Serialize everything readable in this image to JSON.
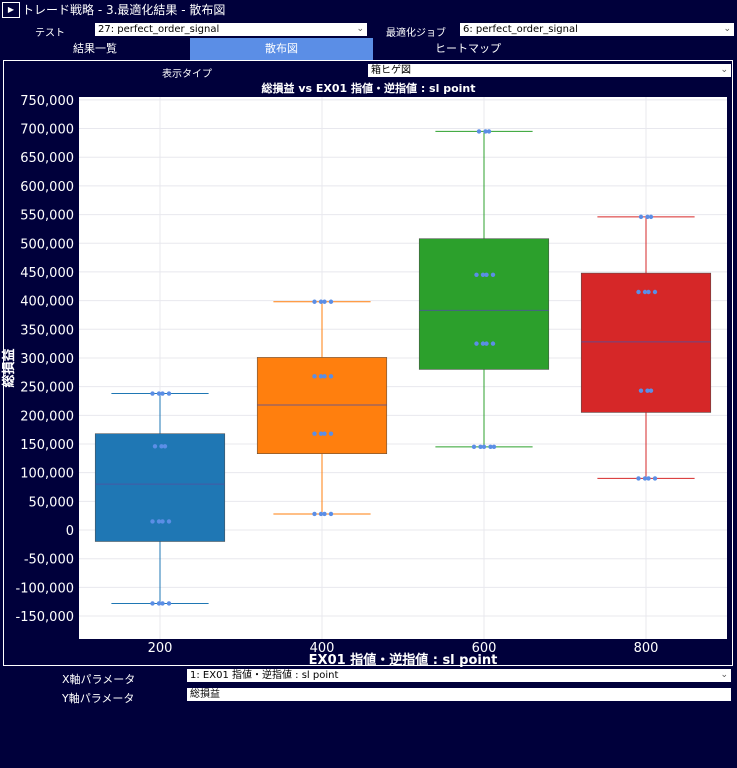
{
  "app": {
    "title": "トレード戦略 - 3.最適化結果 - 散布図",
    "play_icon": "play-icon"
  },
  "controls": {
    "test_label": "テスト",
    "test_value": "27: perfect_order_signal",
    "job_label": "最適化ジョブ",
    "job_value": "6: perfect_order_signal",
    "display_type_label": "表示タイプ",
    "display_type_value": "箱ヒゲ図",
    "x_param_label": "X軸パラメータ",
    "x_param_value": "1: EX01 指値・逆指値 : sl point",
    "y_param_label": "Y軸パラメータ",
    "y_param_value": "総損益"
  },
  "tabs": [
    {
      "label": "結果一覧",
      "active": false
    },
    {
      "label": "散布図",
      "active": true
    },
    {
      "label": "ヒートマップ",
      "active": false
    }
  ],
  "chart_data": {
    "type": "box",
    "title": "総損益 vs EX01 指値・逆指値 : sl point",
    "xlabel": "EX01 指値・逆指値 : sl point",
    "ylabel": "総損益",
    "ylim": [
      -190000,
      755000
    ],
    "yticks": [
      750000,
      700000,
      650000,
      600000,
      550000,
      500000,
      450000,
      400000,
      350000,
      300000,
      250000,
      200000,
      150000,
      100000,
      50000,
      0,
      -50000,
      -100000,
      -150000
    ],
    "categories": [
      "200",
      "400",
      "600",
      "800"
    ],
    "boxes": [
      {
        "x": "200",
        "color": "#1f77b4",
        "min": -128000,
        "q1": -20000,
        "median": 80000,
        "q3": 168000,
        "max": 238000,
        "points": [
          238000,
          238000,
          238000,
          238000,
          146000,
          146000,
          146000,
          15000,
          15000,
          15000,
          15000,
          -128000,
          -128000,
          -128000,
          -128000
        ]
      },
      {
        "x": "400",
        "color": "#ff7f0e",
        "min": 28000,
        "q1": 133000,
        "median": 218000,
        "q3": 301000,
        "max": 398000,
        "points": [
          398000,
          398000,
          398000,
          398000,
          268000,
          268000,
          268000,
          268000,
          168000,
          168000,
          168000,
          168000,
          28000,
          28000,
          28000,
          28000
        ]
      },
      {
        "x": "600",
        "color": "#2ca02c",
        "min": 145000,
        "q1": 280000,
        "median": 383000,
        "q3": 508000,
        "max": 695000,
        "points": [
          695000,
          695000,
          695000,
          445000,
          445000,
          445000,
          445000,
          325000,
          325000,
          325000,
          325000,
          145000,
          145000,
          145000,
          145000,
          145000
        ]
      },
      {
        "x": "800",
        "color": "#d62728",
        "min": 90000,
        "q1": 205000,
        "median": 328000,
        "q3": 448000,
        "max": 546000,
        "points": [
          546000,
          546000,
          546000,
          415000,
          415000,
          415000,
          415000,
          243000,
          243000,
          243000,
          90000,
          90000,
          90000,
          90000
        ]
      }
    ],
    "point_color": "#5b8ee6",
    "grid": true,
    "legend": "none"
  }
}
